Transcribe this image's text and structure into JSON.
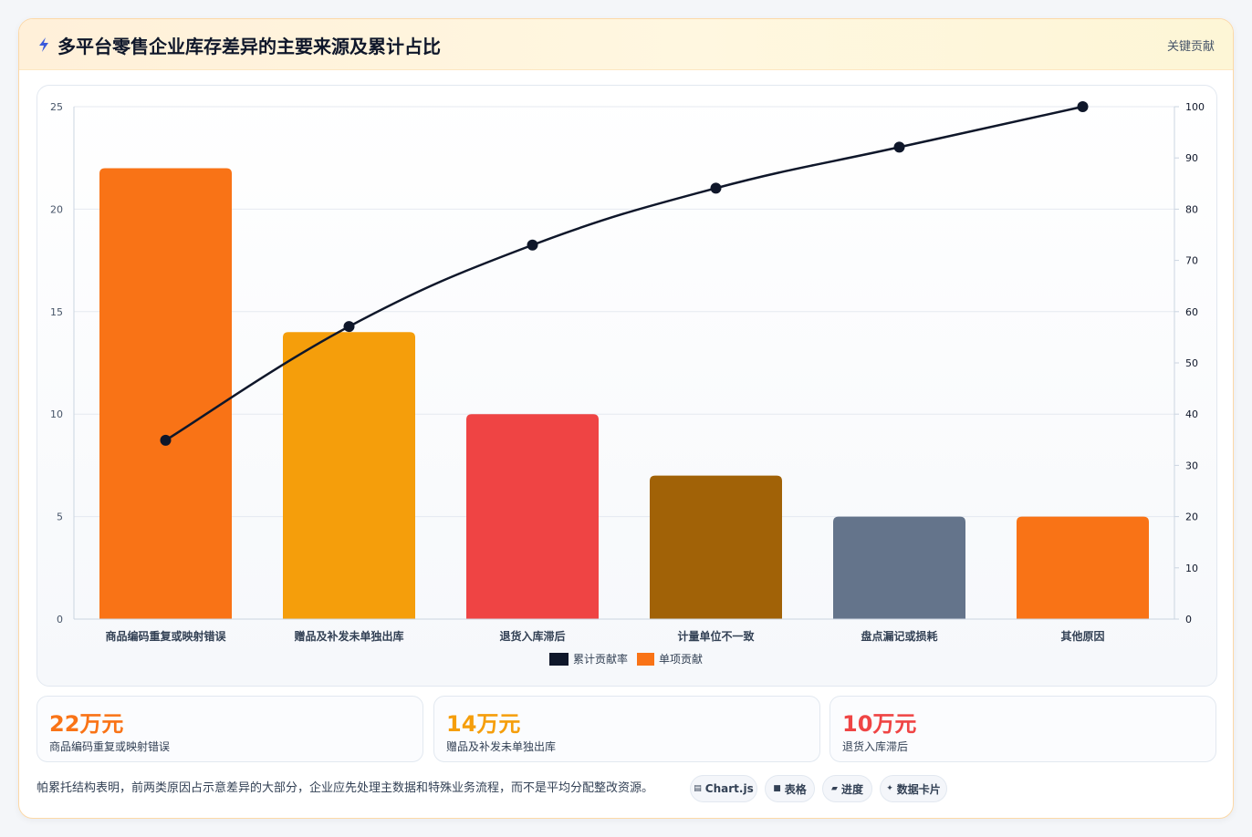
{
  "header": {
    "title": "多平台零售企业库存差异的主要来源及累计占比",
    "tag": "关键贡献",
    "icon": "lightning-icon"
  },
  "chart_data": {
    "type": "bar",
    "title": "",
    "categories": [
      "商品编码重复或映射错误",
      "赠品及补发未单独出库",
      "退货入库滞后",
      "计量单位不一致",
      "盘点漏记或损耗",
      "其他原因"
    ],
    "series": [
      {
        "name": "单项贡献",
        "type": "bar",
        "axis": "left",
        "values": [
          22,
          14,
          10,
          7,
          5,
          5
        ],
        "colors": [
          "#f97316",
          "#f59e0b",
          "#ef4444",
          "#a16207",
          "#64748b",
          "#f97316"
        ]
      },
      {
        "name": "累计贡献率",
        "type": "line",
        "axis": "right",
        "values": [
          34.9,
          57.1,
          73.0,
          84.1,
          92.1,
          100
        ],
        "color": "#0f172a"
      }
    ],
    "y_left": {
      "min": 0,
      "max": 25,
      "ticks": [
        0,
        5,
        10,
        15,
        20,
        25
      ]
    },
    "y_right": {
      "min": 0,
      "max": 100,
      "ticks": [
        0,
        10,
        20,
        30,
        40,
        50,
        60,
        70,
        80,
        90,
        100
      ]
    },
    "grid": true,
    "legend": {
      "position": "bottom",
      "items": [
        "累计贡献率",
        "单项贡献"
      ]
    }
  },
  "stats": [
    {
      "value": "22万元",
      "label": "商品编码重复或映射错误",
      "color": "#f97316"
    },
    {
      "value": "14万元",
      "label": "赠品及补发未单独出库",
      "color": "#f59e0b"
    },
    {
      "value": "10万元",
      "label": "退货入库滞后",
      "color": "#ef4444"
    }
  ],
  "footer": {
    "note": "帕累托结构表明，前两类原因占示意差异的大部分，企业应先处理主数据和特殊业务流程，而不是平均分配整改资源。",
    "pills": [
      {
        "icon": "▤",
        "icon_name": "chart-icon",
        "label": "Chart.js"
      },
      {
        "icon": "■",
        "icon_name": "table-icon",
        "label": "表格"
      },
      {
        "icon": "▰",
        "icon_name": "progress-icon",
        "label": "进度"
      },
      {
        "icon": "✦",
        "icon_name": "sparkle-icon",
        "label": "数据卡片"
      }
    ]
  }
}
